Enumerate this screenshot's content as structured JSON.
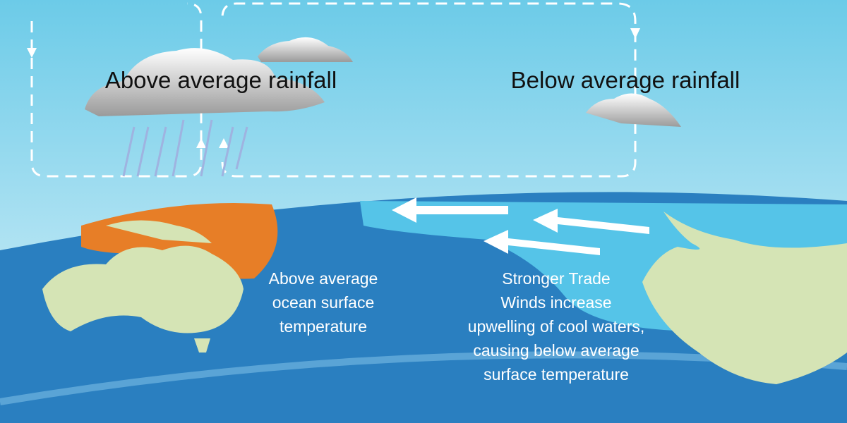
{
  "labels": {
    "left_rainfall": "Above average rainfall",
    "right_rainfall": "Below average rainfall",
    "ocean_temp": [
      "Above average",
      "ocean surface",
      "temperature"
    ],
    "trade_winds": [
      "Stronger Trade",
      "Winds increase",
      "upwelling of cool waters,",
      "causing below average",
      "surface temperature"
    ]
  }
}
